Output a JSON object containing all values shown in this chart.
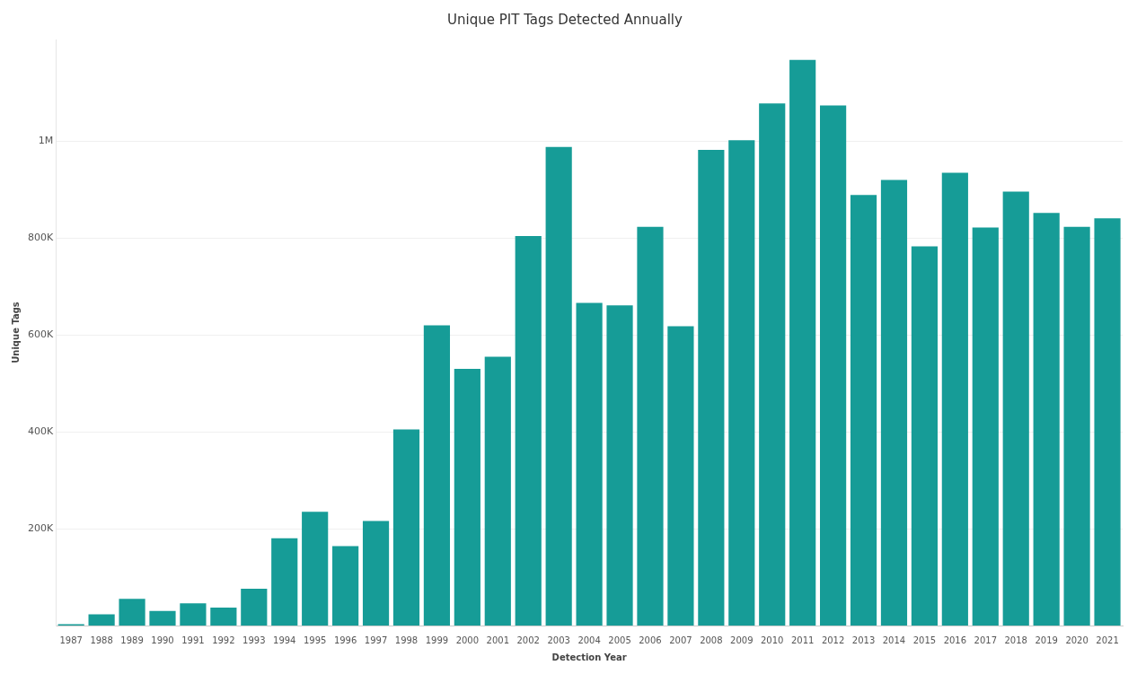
{
  "chart_data": {
    "type": "bar",
    "title": "Unique PIT Tags Detected Annually",
    "xlabel": "Detection Year",
    "ylabel": "Unique Tags",
    "categories": [
      "1987",
      "1988",
      "1989",
      "1990",
      "1991",
      "1992",
      "1993",
      "1994",
      "1995",
      "1996",
      "1997",
      "1998",
      "1999",
      "2000",
      "2001",
      "2002",
      "2003",
      "2004",
      "2005",
      "2006",
      "2007",
      "2008",
      "2009",
      "2010",
      "2011",
      "2012",
      "2013",
      "2014",
      "2015",
      "2016",
      "2017",
      "2018",
      "2019",
      "2020",
      "2021"
    ],
    "values": [
      3000,
      23000,
      55000,
      30000,
      46000,
      37000,
      76000,
      180000,
      235000,
      164000,
      216000,
      405000,
      620000,
      530000,
      555000,
      804000,
      988000,
      666000,
      661000,
      823000,
      618000,
      982000,
      1002000,
      1078000,
      1168000,
      1074000,
      889000,
      920000,
      783000,
      935000,
      822000,
      896000,
      852000,
      823000,
      841000
    ],
    "color": "#169c97",
    "ylim": [
      0,
      1210000
    ],
    "yticks": [
      {
        "value": 200000,
        "label": "200K"
      },
      {
        "value": 400000,
        "label": "400K"
      },
      {
        "value": 600000,
        "label": "600K"
      },
      {
        "value": 800000,
        "label": "800K"
      },
      {
        "value": 1000000,
        "label": "1M"
      }
    ],
    "grid": "y"
  }
}
